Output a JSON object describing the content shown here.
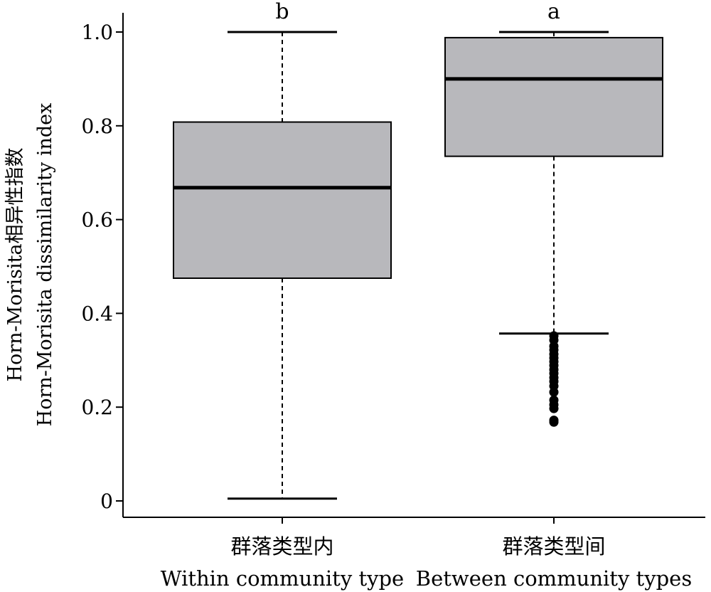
{
  "chart_data": {
    "type": "boxplot",
    "ylabel_lines": [
      "Horn-Morisita相异性指数",
      "Horn-Morisita dissimilarity index"
    ],
    "ylim": [
      0,
      1.0
    ],
    "yticks": [
      0,
      0.2,
      0.4,
      0.6,
      0.8,
      1.0
    ],
    "ytick_labels": [
      "0",
      "0.2",
      "0.4",
      "0.6",
      "0.8",
      "1.0"
    ],
    "grid": false,
    "box_color": "#b8b8bc",
    "categories": [
      {
        "label_cn": "群落类型内",
        "label_en": "Within community type",
        "significance": "b",
        "whisker_low": 0.005,
        "q1": 0.475,
        "median": 0.668,
        "q3": 0.808,
        "whisker_high": 1.0,
        "outliers": []
      },
      {
        "label_cn": "群落类型间",
        "label_en": "Between community types",
        "significance": "a",
        "whisker_low": 0.357,
        "q1": 0.735,
        "median": 0.9,
        "q3": 0.988,
        "whisker_high": 1.0,
        "outliers": [
          0.352,
          0.343,
          0.33,
          0.322,
          0.313,
          0.305,
          0.297,
          0.289,
          0.28,
          0.272,
          0.263,
          0.255,
          0.245,
          0.232,
          0.215,
          0.205,
          0.197,
          0.172,
          0.168
        ]
      }
    ]
  }
}
